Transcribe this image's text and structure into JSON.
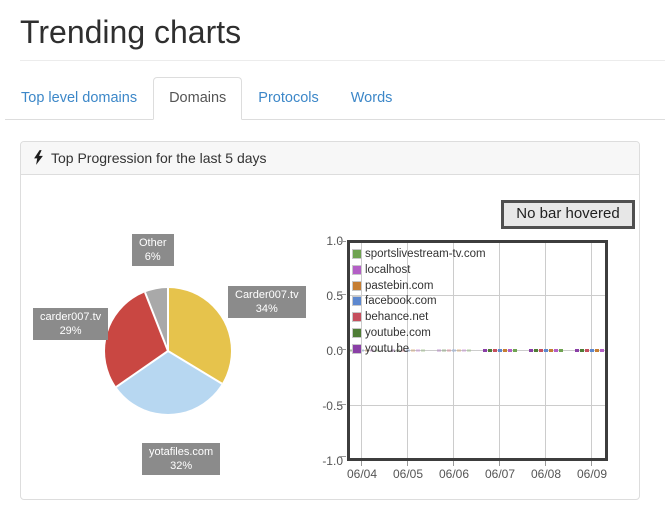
{
  "page": {
    "title": "Trending charts"
  },
  "tabs": {
    "items": [
      {
        "label": "Top level domains",
        "active": false
      },
      {
        "label": "Domains",
        "active": true
      },
      {
        "label": "Protocols",
        "active": false
      },
      {
        "label": "Words",
        "active": false
      }
    ]
  },
  "panel": {
    "title": "Top Progression for the last 5 days"
  },
  "bar_chart_status": "No bar hovered",
  "chart_data": [
    {
      "type": "pie",
      "slices": [
        {
          "label": "Carder007.tv",
          "value": 34,
          "pct_label": "34%",
          "color": "#e6c34c"
        },
        {
          "label": "yotafiles.com",
          "value": 32,
          "pct_label": "32%",
          "color": "#b7d7f1"
        },
        {
          "label": "carder007.tv",
          "value": 29,
          "pct_label": "29%",
          "color": "#c94742"
        },
        {
          "label": "Other",
          "value": 6,
          "pct_label": "6%",
          "color": "#a9a9a9"
        }
      ]
    },
    {
      "type": "bar",
      "x": [
        "06/04",
        "06/05",
        "06/06",
        "06/07",
        "06/08",
        "06/09"
      ],
      "ylim": [
        -1.0,
        1.0
      ],
      "yticks": [
        "1.0",
        "0.5",
        "0.0",
        "-0.5",
        "-1.0"
      ],
      "series": [
        {
          "name": "sportslivestream-tv.com",
          "color": "#6fa351",
          "values": [
            0,
            0,
            0,
            0,
            0,
            0
          ]
        },
        {
          "name": "localhost",
          "color": "#b45fc6",
          "values": [
            0,
            0,
            0,
            0,
            0,
            0
          ]
        },
        {
          "name": "pastebin.com",
          "color": "#c67e33",
          "values": [
            0,
            0,
            0,
            0,
            0,
            0
          ]
        },
        {
          "name": "facebook.com",
          "color": "#5d88cf",
          "values": [
            0,
            0,
            0,
            0,
            0,
            0
          ]
        },
        {
          "name": "behance.net",
          "color": "#c64f5e",
          "values": [
            0,
            0,
            0,
            0,
            0,
            0
          ]
        },
        {
          "name": "youtube.com",
          "color": "#4f7d36",
          "values": [
            0,
            0,
            0,
            0,
            0,
            0
          ]
        },
        {
          "name": "youtu.be",
          "color": "#8a3fa6",
          "values": [
            0,
            0,
            0,
            0,
            0,
            0
          ]
        }
      ],
      "faded_dates": [
        "06/04",
        "06/05",
        "06/06"
      ],
      "grid": true,
      "legend_position": "top-left"
    }
  ]
}
